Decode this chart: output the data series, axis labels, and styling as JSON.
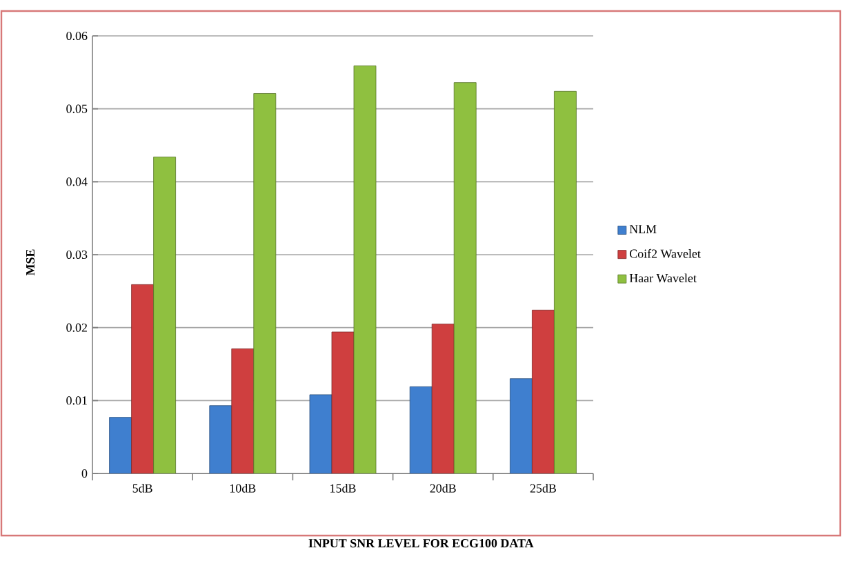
{
  "chart_data": {
    "type": "bar",
    "xlabel": "INPUT SNR LEVEL FOR ECG100 DATA",
    "ylabel": "MSE",
    "categories": [
      "5dB",
      "10dB",
      "15dB",
      "20dB",
      "25dB"
    ],
    "series": [
      {
        "name": "NLM",
        "color": "#3f7fcf",
        "values": [
          0.0077,
          0.0093,
          0.0108,
          0.0119,
          0.013
        ]
      },
      {
        "name": "Coif2 Wavelet",
        "color": "#cf3f3f",
        "values": [
          0.0259,
          0.0171,
          0.0194,
          0.0205,
          0.0224
        ]
      },
      {
        "name": "Haar Wavelet",
        "color": "#8fc040",
        "values": [
          0.0434,
          0.0521,
          0.0559,
          0.0536,
          0.0524
        ]
      }
    ],
    "ylim": [
      0,
      0.06
    ],
    "yticks": [
      0,
      0.01,
      0.02,
      0.03,
      0.04,
      0.05,
      0.06
    ],
    "grid": "y",
    "legend": "right"
  }
}
